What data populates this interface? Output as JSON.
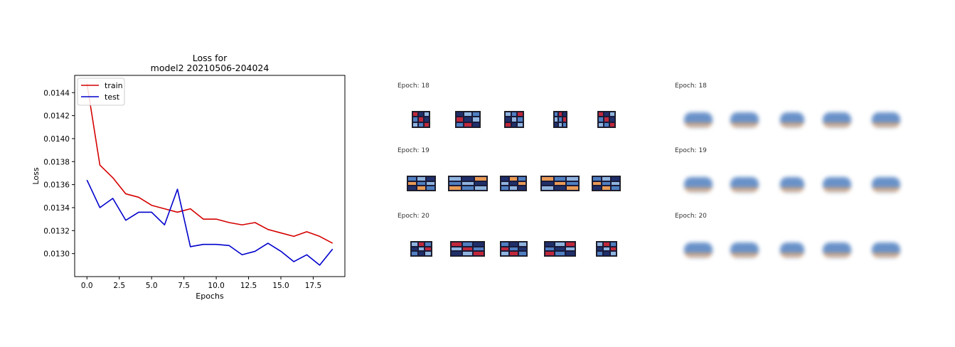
{
  "chart_data": {
    "type": "line",
    "title": [
      "Loss for",
      "model2 20210506-204024"
    ],
    "xlabel": "Epochs",
    "ylabel": "Loss",
    "xlim": [
      -0.95,
      19.95
    ],
    "ylim": [
      0.0128,
      0.01455
    ],
    "xticks": [
      0.0,
      2.5,
      5.0,
      7.5,
      10.0,
      12.5,
      15.0,
      17.5
    ],
    "xtick_labels": [
      "0.0",
      "2.5",
      "5.0",
      "7.5",
      "10.0",
      "12.5",
      "15.0",
      "17.5"
    ],
    "yticks": [
      0.013,
      0.0132,
      0.0134,
      0.0136,
      0.0138,
      0.014,
      0.0142,
      0.0144
    ],
    "ytick_labels": [
      "0.0130",
      "0.0132",
      "0.0134",
      "0.0136",
      "0.0138",
      "0.0140",
      "0.0142",
      "0.0144"
    ],
    "legend": "upper-left",
    "series": [
      {
        "name": "train",
        "color": "#d40000",
        "x": [
          0,
          1,
          2,
          3,
          4,
          5,
          6,
          7,
          8,
          9,
          10,
          11,
          12,
          13,
          14,
          15,
          16,
          17,
          18,
          19
        ],
        "values": [
          0.01448,
          0.01377,
          0.01366,
          0.01352,
          0.01349,
          0.01342,
          0.01339,
          0.01336,
          0.01339,
          0.0133,
          0.0133,
          0.01327,
          0.01325,
          0.01327,
          0.01321,
          0.01318,
          0.01315,
          0.01319,
          0.01315,
          0.01309
        ]
      },
      {
        "name": "test",
        "color": "#0000cc",
        "x": [
          0,
          1,
          2,
          3,
          4,
          5,
          6,
          7,
          8,
          9,
          10,
          11,
          12,
          13,
          14,
          15,
          16,
          17,
          18,
          19
        ],
        "values": [
          0.01364,
          0.0134,
          0.01348,
          0.01329,
          0.01336,
          0.01336,
          0.01325,
          0.01356,
          0.01306,
          0.01308,
          0.01308,
          0.01307,
          0.01299,
          0.01302,
          0.01309,
          0.01302,
          0.01293,
          0.01299,
          0.0129,
          0.01304
        ]
      }
    ]
  },
  "panels": {
    "left": [
      {
        "epoch_label": "Epoch: 18"
      },
      {
        "epoch_label": "Epoch: 19"
      },
      {
        "epoch_label": "Epoch: 20"
      }
    ],
    "right": [
      {
        "epoch_label": "Epoch: 18"
      },
      {
        "epoch_label": "Epoch: 19"
      },
      {
        "epoch_label": "Epoch: 20"
      }
    ]
  },
  "colors": {
    "block_blue": "#4f7fc0",
    "block_light": "#8fb4de",
    "block_dark": "#1f2f6a",
    "block_red": "#c0283a",
    "block_orange": "#e89a55"
  }
}
